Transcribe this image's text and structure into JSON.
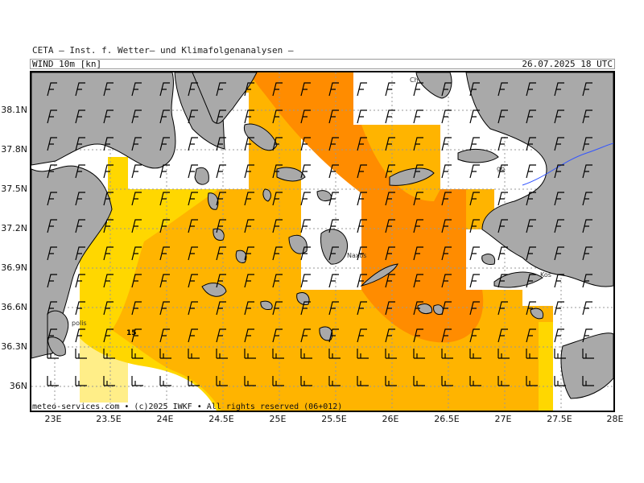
{
  "header": {
    "institute": "CETA — Inst. f. Wetter— und Klimafolgenanalysen —",
    "variable": "WIND 10m [kn]",
    "datetime": "26.07.2025 18 UTC"
  },
  "footer": {
    "credit": "meteo-services.com • (c)2025 IWKF • All rights reserved (06+012)"
  },
  "axes": {
    "lat_labels": [
      "38.1N",
      "37.8N",
      "37.5N",
      "37.2N",
      "36.9N",
      "36.6N",
      "36.3N",
      "36N"
    ],
    "lat_values": [
      38.1,
      37.8,
      37.5,
      37.2,
      36.9,
      36.6,
      36.3,
      36.0
    ],
    "lon_labels": [
      "23E",
      "23.5E",
      "24E",
      "24.5E",
      "25E",
      "25.5E",
      "26E",
      "26.5E",
      "27E",
      "27.5E",
      "28E"
    ],
    "lon_values": [
      23.0,
      23.5,
      24.0,
      24.5,
      25.0,
      25.5,
      26.0,
      26.5,
      27.0,
      27.5,
      28.0
    ],
    "lon_range": [
      22.8,
      28.0
    ],
    "lat_range": [
      35.85,
      38.4
    ]
  },
  "place_labels": {
    "naxos": "Naxos",
    "kos": "Kos",
    "tripolis": "polis",
    "chios": "Ch",
    "samos": "go"
  },
  "isoline_label": "15",
  "colors": {
    "land": "#a9a9a9",
    "sea_calm": "#ffffff",
    "wind_10_15": "#ffee88",
    "wind_15_20": "#ffd700",
    "wind_20_25": "#ffb400",
    "wind_25_30": "#ff8c00",
    "border": "#3355ff",
    "grid": "#999999"
  },
  "wind_barb_icon": "wind-barb-icon"
}
